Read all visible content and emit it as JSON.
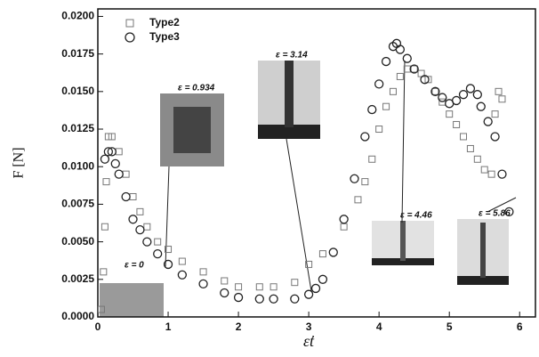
{
  "chart_data": {
    "type": "scatter",
    "x_label": "ε̇t",
    "y_label": "F [N]",
    "xlim": [
      0,
      6.25
    ],
    "ylim": [
      0,
      0.0205
    ],
    "xticks": [
      0,
      1,
      2,
      3,
      4,
      5,
      6
    ],
    "yticks": [
      {
        "value": 0,
        "label": "0.0000"
      },
      {
        "value": 0.0025,
        "label": "0.0025"
      },
      {
        "value": 0.005,
        "label": "0.0050"
      },
      {
        "value": 0.0075,
        "label": "0.0075"
      },
      {
        "value": 0.01,
        "label": "0.0100"
      },
      {
        "value": 0.0125,
        "label": "0.0125"
      },
      {
        "value": 0.015,
        "label": "0.0150"
      },
      {
        "value": 0.0175,
        "label": "0.0175"
      },
      {
        "value": 0.02,
        "label": "0.0200"
      }
    ],
    "legend": "upper left",
    "series": [
      {
        "name": "Type2",
        "marker": "square",
        "color": "#777777",
        "x": [
          0.05,
          0.08,
          0.1,
          0.12,
          0.15,
          0.2,
          0.3,
          0.4,
          0.5,
          0.6,
          0.7,
          0.85,
          1.0,
          1.2,
          1.5,
          1.8,
          2.0,
          2.3,
          2.5,
          2.8,
          3.0,
          3.2,
          3.5,
          3.7,
          3.8,
          3.9,
          4.0,
          4.1,
          4.2,
          4.3,
          4.4,
          4.5,
          4.6,
          4.7,
          4.8,
          4.9,
          5.0,
          5.1,
          5.2,
          5.3,
          5.4,
          5.5,
          5.6,
          5.65,
          5.7,
          5.75
        ],
        "values": [
          0.0005,
          0.003,
          0.006,
          0.009,
          0.012,
          0.012,
          0.011,
          0.0095,
          0.008,
          0.007,
          0.006,
          0.005,
          0.0045,
          0.0037,
          0.003,
          0.0024,
          0.002,
          0.002,
          0.002,
          0.0023,
          0.0035,
          0.0042,
          0.006,
          0.0078,
          0.009,
          0.0105,
          0.0125,
          0.014,
          0.015,
          0.016,
          0.0165,
          0.0165,
          0.0162,
          0.0158,
          0.015,
          0.0143,
          0.0135,
          0.0128,
          0.012,
          0.0112,
          0.0105,
          0.0098,
          0.0095,
          0.0135,
          0.015,
          0.0145
        ]
      },
      {
        "name": "Type3",
        "marker": "circle",
        "color": "#222222",
        "x": [
          0.1,
          0.15,
          0.2,
          0.25,
          0.3,
          0.4,
          0.5,
          0.6,
          0.7,
          0.85,
          1.0,
          1.2,
          1.5,
          1.8,
          2.0,
          2.3,
          2.5,
          2.8,
          3.0,
          3.1,
          3.2,
          3.35,
          3.5,
          3.65,
          3.8,
          3.9,
          4.0,
          4.1,
          4.2,
          4.25,
          4.3,
          4.4,
          4.5,
          4.65,
          4.8,
          4.9,
          5.0,
          5.1,
          5.2,
          5.3,
          5.4,
          5.45,
          5.55,
          5.65,
          5.75,
          5.85
        ],
        "values": [
          0.0105,
          0.011,
          0.011,
          0.0102,
          0.0095,
          0.008,
          0.0065,
          0.0058,
          0.005,
          0.0042,
          0.0035,
          0.0028,
          0.0022,
          0.0016,
          0.0013,
          0.0012,
          0.0012,
          0.0012,
          0.0015,
          0.0019,
          0.0025,
          0.0043,
          0.0065,
          0.0092,
          0.012,
          0.0138,
          0.0155,
          0.017,
          0.018,
          0.0182,
          0.0178,
          0.0172,
          0.0165,
          0.0158,
          0.015,
          0.0146,
          0.0142,
          0.0144,
          0.0148,
          0.0152,
          0.0148,
          0.014,
          0.013,
          0.012,
          0.0095,
          0.007
        ]
      }
    ],
    "annotations": [
      "ε = 0",
      "ε = 0.934",
      "ε = 3.14",
      "ε = 4.46",
      "ε = 5.86"
    ]
  }
}
